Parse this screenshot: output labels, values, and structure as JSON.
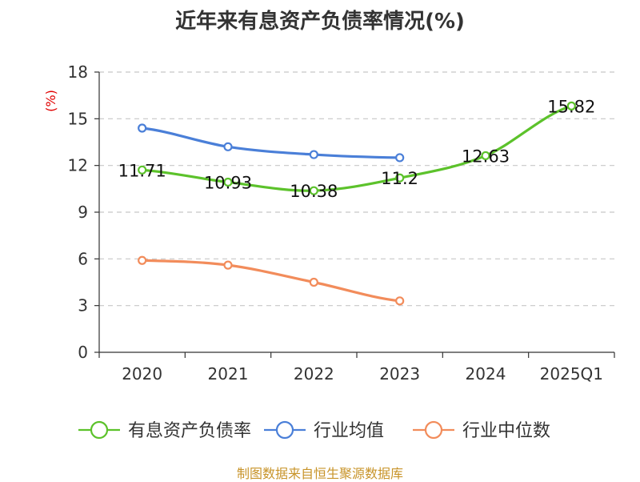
{
  "chart_data": {
    "type": "line",
    "title": "近年来有息资产负债率情况(%)",
    "ylabel": "(%)",
    "categories": [
      "2020",
      "2021",
      "2022",
      "2023",
      "2024",
      "2025Q1"
    ],
    "ylim": [
      0,
      18
    ],
    "yticks": [
      0,
      3,
      6,
      9,
      12,
      15,
      18
    ],
    "grid": true,
    "legend_position": "bottom",
    "series": [
      {
        "name": "有息资产负债率",
        "color": "#5cc22b",
        "values": [
          11.71,
          10.93,
          10.38,
          11.2,
          12.63,
          15.82
        ],
        "show_labels": true
      },
      {
        "name": "行业均值",
        "color": "#4a7fd8",
        "values": [
          14.4,
          13.2,
          12.7,
          12.5,
          null,
          null
        ],
        "show_labels": false
      },
      {
        "name": "行业中位数",
        "color": "#f28c5b",
        "values": [
          5.9,
          5.6,
          4.5,
          3.3,
          null,
          null
        ],
        "show_labels": false
      }
    ]
  },
  "source": "制图数据来自恒生聚源数据库"
}
